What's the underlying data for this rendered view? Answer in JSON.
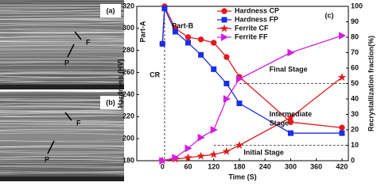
{
  "images": [
    {
      "label": "(a)",
      "annotations": [
        "F",
        "P"
      ]
    },
    {
      "label": "(b)",
      "annotations": [
        "F",
        "P"
      ]
    }
  ],
  "chart_data": {
    "type": "line",
    "panel_label": "(c)",
    "xlabel": "Time (S)",
    "ylabel": "Hardness (HV)",
    "y2label": "Recrystallization fraction(%)",
    "xlim": [
      -60,
      435
    ],
    "xticks": [
      0,
      60,
      120,
      180,
      240,
      300,
      360,
      420
    ],
    "ylim": [
      180,
      320
    ],
    "yticks": [
      180,
      200,
      220,
      240,
      260,
      280,
      300,
      320
    ],
    "y2lim": [
      0,
      100
    ],
    "y2ticks": [
      0,
      10,
      20,
      30,
      40,
      50,
      60,
      70,
      80,
      90,
      100
    ],
    "legend": "upper center",
    "series": [
      {
        "name": "Hardness CP",
        "color": "#e01b1b",
        "marker": "circle",
        "axis": "y",
        "x": [
          0,
          5,
          30,
          60,
          90,
          120,
          150,
          180,
          300,
          420
        ],
        "values": [
          286,
          320,
          300,
          292,
          290,
          287,
          274,
          256,
          215,
          210
        ]
      },
      {
        "name": "Hardness FP",
        "color": "#1a2ee6",
        "marker": "square",
        "axis": "y",
        "x": [
          0,
          5,
          30,
          60,
          90,
          120,
          150,
          180,
          300,
          420
        ],
        "values": [
          286,
          318,
          297,
          287,
          276,
          263,
          250,
          232,
          205,
          205
        ]
      },
      {
        "name": "Ferrite CF",
        "color": "#e01b1b",
        "marker": "star",
        "axis": "y2",
        "x": [
          0,
          30,
          60,
          90,
          120,
          150,
          180,
          300,
          420
        ],
        "values": [
          0,
          1,
          2,
          3,
          4,
          6,
          10,
          28,
          54
        ]
      },
      {
        "name": "Ferrite FF",
        "color": "#d21fe0",
        "marker": "triangle",
        "axis": "y2",
        "x": [
          0,
          30,
          60,
          90,
          120,
          150,
          180,
          300,
          420
        ],
        "values": [
          0,
          2,
          8,
          15,
          20,
          40,
          53,
          70,
          81
        ]
      }
    ],
    "annotations": [
      "Part-A",
      "Part-B",
      "CR",
      "Final Stage",
      "Intermediate",
      "Stage",
      "Initial Stage"
    ]
  }
}
